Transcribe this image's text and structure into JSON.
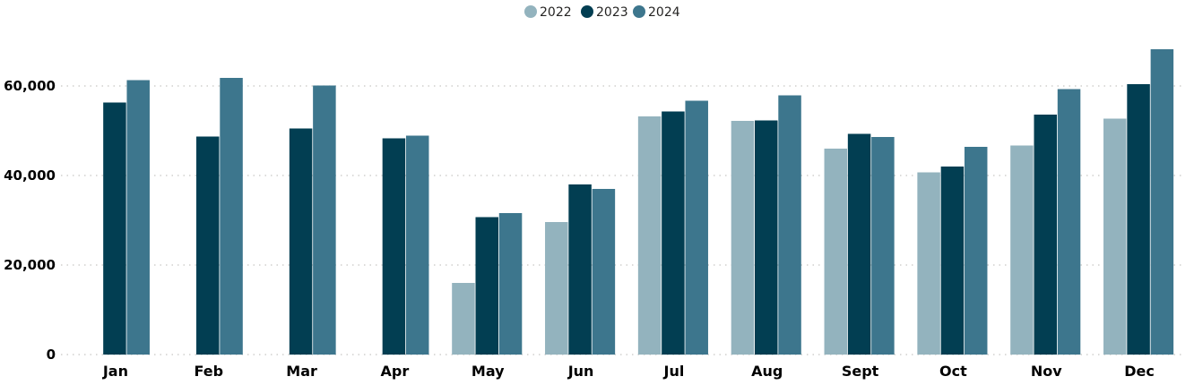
{
  "chart_data": {
    "type": "bar",
    "categories": [
      "Jan",
      "Feb",
      "Mar",
      "Apr",
      "May",
      "Jun",
      "Jul",
      "Aug",
      "Sept",
      "Oct",
      "Nov",
      "Dec"
    ],
    "series": [
      {
        "name": "2022",
        "color": "#93b3be",
        "values": [
          null,
          null,
          null,
          null,
          16000,
          29600,
          53200,
          52200,
          46000,
          40700,
          46700,
          52700
        ]
      },
      {
        "name": "2023",
        "color": "#023e52",
        "values": [
          56300,
          48700,
          50500,
          48300,
          30700,
          38000,
          54300,
          52300,
          49300,
          42000,
          53600,
          60400
        ]
      },
      {
        "name": "2024",
        "color": "#3d768d",
        "values": [
          61300,
          61800,
          60100,
          48900,
          31600,
          37000,
          56700,
          57900,
          48600,
          46400,
          59300,
          68200
        ]
      }
    ],
    "yticks": [
      "0",
      "20,000",
      "40,000",
      "60,000"
    ],
    "ytick_values": [
      0,
      20000,
      40000,
      60000
    ],
    "ylim": [
      0,
      70000
    ],
    "grid": "horizontal dotted",
    "legend_position": "top-center"
  }
}
